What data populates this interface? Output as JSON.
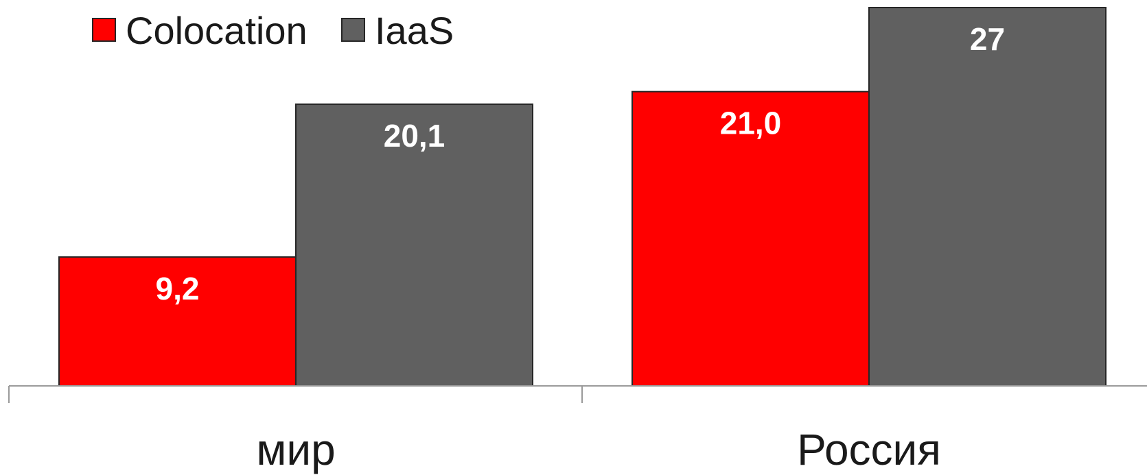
{
  "chart_data": {
    "type": "bar",
    "title": "",
    "xlabel": "",
    "ylabel": "",
    "categories": [
      "мир",
      "Россия"
    ],
    "series": [
      {
        "name": "Colocation",
        "color": "#ff0000",
        "values": [
          9.2,
          21.0
        ],
        "labels": [
          "9,2",
          "21,0"
        ]
      },
      {
        "name": "IaaS",
        "color": "#606060",
        "values": [
          20.1,
          27
        ],
        "labels": [
          "20,1",
          "27"
        ]
      }
    ],
    "ylim": [
      0,
      27
    ],
    "grid": false,
    "legend": "top-left",
    "data_labels": "inside-top"
  }
}
